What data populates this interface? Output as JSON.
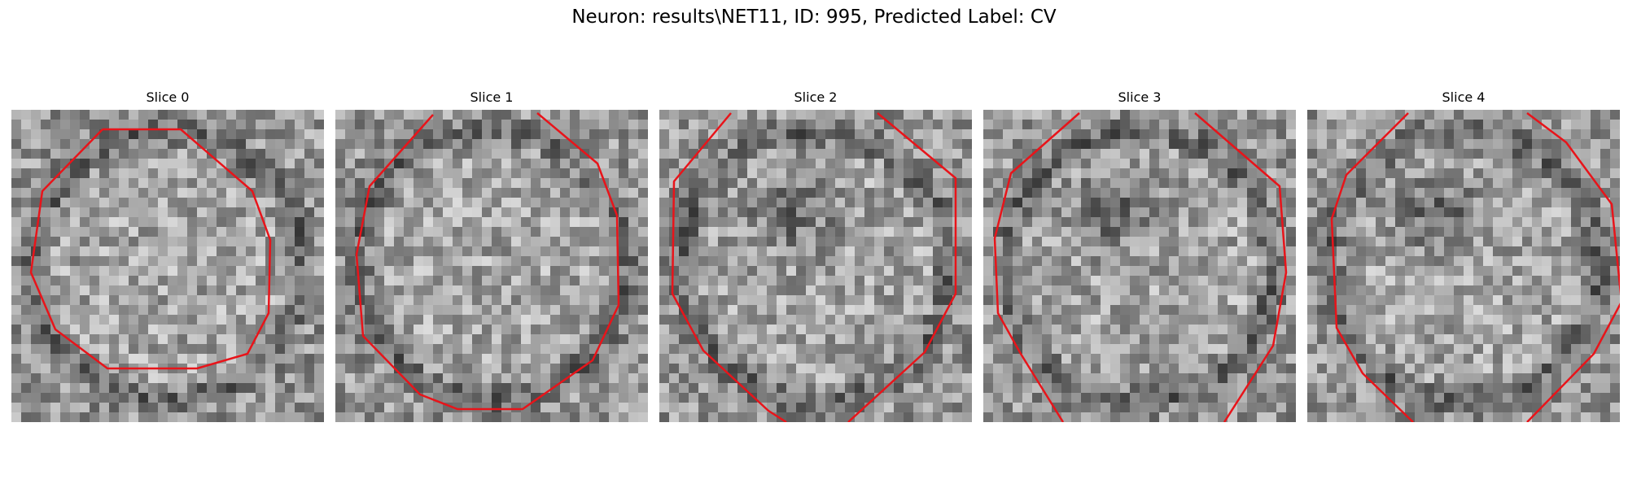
{
  "figure": {
    "title": "Neuron: results\\NET11, ID: 995, Predicted Label: CV",
    "contour_color": "#e8141a",
    "colormap": "gray"
  },
  "slices": [
    {
      "label": "Slice 0",
      "dark_blob": false
    },
    {
      "label": "Slice 1",
      "dark_blob": false
    },
    {
      "label": "Slice 2",
      "dark_blob": true
    },
    {
      "label": "Slice 3",
      "dark_blob": true
    },
    {
      "label": "Slice 4",
      "dark_blob": true
    }
  ]
}
